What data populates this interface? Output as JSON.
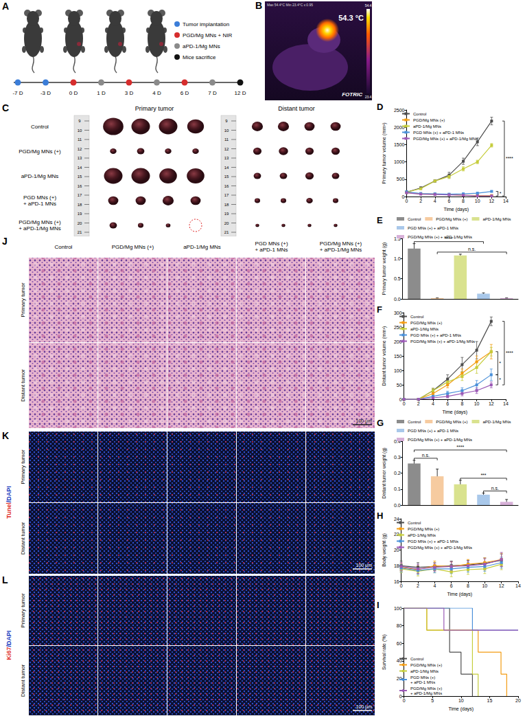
{
  "panels": {
    "A": {
      "letter": "A",
      "legend": [
        {
          "label": "Tumor implantation",
          "color": "#3b7dd8"
        },
        {
          "label": "PGD/Mg MNs + NIR",
          "color": "#d62d2d"
        },
        {
          "label": "aPD-1/Mg MNs",
          "color": "#8a8a8a"
        },
        {
          "label": "Mice sacrifice",
          "color": "#111111"
        }
      ],
      "timeline": [
        {
          "day": "-7 D",
          "event": "Tumor implantation"
        },
        {
          "day": "-3 D",
          "event": "Tumor implantation"
        },
        {
          "day": "0 D",
          "event": "PGD/Mg MNs + NIR"
        },
        {
          "day": "1 D",
          "event": "aPD-1/Mg MNs"
        },
        {
          "day": "3 D",
          "event": "PGD/Mg MNs + NIR"
        },
        {
          "day": "4 D",
          "event": "aPD-1/Mg MNs"
        },
        {
          "day": "6 D",
          "event": "PGD/Mg MNs + NIR"
        },
        {
          "day": "7 D",
          "event": "aPD-1/Mg MNs"
        },
        {
          "day": "12 D",
          "event": "Mice sacrifice"
        }
      ]
    },
    "B": {
      "letter": "B",
      "header": "Max 54.4°C Min 23.4°C ε:0.95",
      "temperature": "54.3 °C",
      "brand": "FOTRIC",
      "colorbar_labels": [
        "54.4",
        "23.4"
      ]
    },
    "C": {
      "letter": "C",
      "headers": [
        "Primary tumor",
        "Distant tumor"
      ],
      "ruler": [
        9,
        10,
        11,
        12,
        13,
        14,
        15,
        16,
        17,
        18,
        19,
        20,
        21
      ],
      "groups": [
        {
          "name": "Control",
          "primary_cm": [
            2.2,
            2.0,
            2.0,
            1.8
          ],
          "distant_cm": [
            1.2,
            1.2,
            1.1,
            1.1
          ]
        },
        {
          "name": "PGD/Mg MNs (+)",
          "primary_cm": [
            0.7,
            0.8,
            0.7,
            0.7
          ],
          "distant_cm": [
            0.9,
            1.0,
            0.9,
            0.9
          ]
        },
        {
          "name": "aPD-1/Mg MNs",
          "primary_cm": [
            2.0,
            2.0,
            1.9,
            1.9
          ],
          "distant_cm": [
            0.8,
            0.8,
            0.9,
            0.8
          ]
        },
        {
          "name": "PGD MNs (+) + aPD-1 MNs",
          "primary_cm": [
            1.1,
            1.1,
            1.2,
            1.1
          ],
          "distant_cm": [
            0.6,
            0.6,
            0.7,
            0.6
          ]
        },
        {
          "name": "PGD/Mg MNs (+) + aPD-1/Mg MNs",
          "primary_cm": [
            0.8,
            0.6,
            0.5,
            null
          ],
          "distant_cm": [
            0.4,
            0.4,
            0.4,
            0.4
          ]
        }
      ]
    },
    "J": {
      "letter": "J",
      "columns": [
        "Control",
        "PGD/Mg MNs (+)",
        "aPD-1/Mg MNs",
        "PGD MNs (+) + aPD-1 MNs",
        "PGD/Mg MNs (+) + aPD-1/Mg MNs"
      ],
      "rows": [
        "Primary tumor",
        "Distant tumor"
      ],
      "scale_bar": "100 μm"
    },
    "K": {
      "letter": "K",
      "stain": "Tunel/DAPI",
      "rows": [
        "Primary tumor",
        "Distant tumor"
      ],
      "scale_bar": "100 μm"
    },
    "L": {
      "letter": "L",
      "stain": "Ki67/DAPI",
      "rows": [
        "Primary tumor",
        "Distant tumor"
      ],
      "scale_bar": "100 μm"
    }
  },
  "chart_data": [
    {
      "letter": "D",
      "type": "line",
      "marker": "square",
      "x_label": "Time (days)",
      "y_label": "Primary tumor volume (mm³)",
      "x": [
        0,
        2,
        4,
        6,
        8,
        10,
        12
      ],
      "xlim": [
        0,
        14
      ],
      "xticks": [
        0,
        2,
        4,
        6,
        8,
        10,
        12,
        14
      ],
      "ylim": [
        0,
        2500
      ],
      "yticks": [
        0,
        500,
        1000,
        1500,
        2000,
        2500
      ],
      "grid": false,
      "legend": "top-left",
      "series": [
        {
          "name": "Control",
          "color": "#4d4d4d",
          "values": [
            130,
            250,
            450,
            620,
            1020,
            1580,
            2180
          ],
          "errors": [
            20,
            30,
            30,
            80,
            90,
            110,
            110
          ]
        },
        {
          "name": "PGD/Mg MNs (+)",
          "color": "#f39c12",
          "values": [
            120,
            80,
            70,
            60,
            40,
            30,
            30
          ],
          "errors": [
            20,
            15,
            15,
            10,
            10,
            10,
            10
          ]
        },
        {
          "name": "aPD-1/Mg MNs",
          "color": "#c5cc3a",
          "values": [
            130,
            230,
            450,
            580,
            800,
            1000,
            1480
          ],
          "errors": [
            20,
            30,
            30,
            60,
            60,
            50,
            50
          ]
        },
        {
          "name": "PGD MNs (+) + aPD-1 MNs",
          "color": "#4a90d9",
          "values": [
            140,
            90,
            80,
            70,
            80,
            100,
            150
          ],
          "errors": [
            20,
            15,
            15,
            10,
            15,
            15,
            20
          ]
        },
        {
          "name": "PGD/Mg MNs (+) + aPD-1/Mg MNs",
          "color": "#9b59b6",
          "values": [
            110,
            70,
            60,
            50,
            40,
            20,
            20
          ],
          "errors": [
            20,
            15,
            10,
            10,
            10,
            10,
            10
          ]
        }
      ],
      "annotations": [
        {
          "text": "*",
          "between": [
            "PGD MNs (+) + aPD-1 MNs",
            "PGD/Mg MNs (+) + aPD-1/Mg MNs"
          ]
        },
        {
          "text": "****",
          "between": [
            "Control",
            "PGD/Mg MNs (+) + aPD-1/Mg MNs"
          ]
        }
      ]
    },
    {
      "letter": "E",
      "type": "bar",
      "y_label": "Primary tumor weight (g)",
      "categories": [
        "Control",
        "PGD/Mg MNs (+)",
        "aPD-1/Mg MNs",
        "PGD MNs (+) + aPD-1 MNs",
        "PGD/Mg MNs (+) + aPD-1/Mg MNs"
      ],
      "values": [
        1.25,
        0.02,
        1.08,
        0.13,
        0.02
      ],
      "errors": [
        0.12,
        0.005,
        0.03,
        0.02,
        0.005
      ],
      "colors": [
        "#8c8c8c",
        "#f6cba0",
        "#d9e28e",
        "#a9c8ea",
        "#d7b0d8"
      ],
      "ylim": [
        0,
        1.5
      ],
      "yticks": [
        {
          "value": 0,
          "label": "0.0"
        },
        0.5,
        {
          "value": 1,
          "label": "1.0"
        },
        1.5
      ],
      "tick_labels": "y",
      "grid": false,
      "legend": "top",
      "annotations": [
        {
          "text": "n.s.",
          "between": [
            "PGD/Mg MNs (+)",
            "PGD/Mg MNs (+) + aPD-1/Mg MNs"
          ]
        },
        {
          "text": "****",
          "between": [
            "Control",
            "PGD MNs (+) + aPD-1 MNs"
          ]
        }
      ]
    },
    {
      "letter": "F",
      "type": "line",
      "marker": "square",
      "x_label": "Time (days)",
      "y_label": "Distant tumor volume (mm³)",
      "x": [
        0,
        2,
        4,
        6,
        8,
        10,
        12
      ],
      "xlim": [
        0,
        14
      ],
      "xticks": [
        0,
        2,
        4,
        6,
        8,
        10,
        12,
        14
      ],
      "ylim": [
        0,
        300
      ],
      "yticks": [
        0,
        50,
        100,
        150,
        200,
        250,
        300
      ],
      "grid": false,
      "legend": "top-left",
      "series": [
        {
          "name": "Control",
          "color": "#4d4d4d",
          "values": [
            0,
            0,
            30,
            70,
            120,
            170,
            270
          ],
          "errors": [
            0,
            0,
            8,
            15,
            25,
            30,
            15
          ]
        },
        {
          "name": "PGD/Mg MNs (+)",
          "color": "#f39c12",
          "values": [
            0,
            0,
            20,
            50,
            90,
            130,
            165
          ],
          "errors": [
            0,
            0,
            6,
            10,
            15,
            20,
            25
          ]
        },
        {
          "name": "aPD-1/Mg MNs",
          "color": "#c5cc3a",
          "values": [
            0,
            0,
            30,
            60,
            80,
            110,
            165
          ],
          "errors": [
            0,
            0,
            8,
            10,
            15,
            20,
            15
          ]
        },
        {
          "name": "PGD MNs (+) + aPD-1 MNs",
          "color": "#4a90d9",
          "values": [
            0,
            0,
            10,
            20,
            30,
            50,
            85
          ],
          "errors": [
            0,
            0,
            5,
            8,
            10,
            15,
            20
          ]
        },
        {
          "name": "PGD/Mg MNs (+) + aPD-1/Mg MNs",
          "color": "#9b59b6",
          "values": [
            0,
            0,
            5,
            10,
            20,
            30,
            50
          ],
          "errors": [
            0,
            0,
            3,
            5,
            8,
            10,
            10
          ]
        }
      ],
      "annotations": [
        {
          "text": "*",
          "between": [
            "PGD/Mg MNs (+)",
            "PGD MNs (+) + aPD-1 MNs"
          ]
        },
        {
          "text": "*",
          "between": [
            "PGD MNs (+) + aPD-1 MNs",
            "PGD/Mg MNs (+) + aPD-1/Mg MNs"
          ]
        },
        {
          "text": "****",
          "between": [
            "Control",
            "PGD/Mg MNs (+) + aPD-1/Mg MNs"
          ]
        }
      ]
    },
    {
      "letter": "G",
      "type": "bar",
      "y_label": "Distant tumor weight (g)",
      "categories": [
        "Control",
        "PGD/Mg MNs (+)",
        "aPD-1/Mg MNs",
        "PGD MNs (+) + aPD-1 MNs",
        "PGD/Mg MNs (+) + aPD-1/Mg MNs"
      ],
      "values": [
        0.26,
        0.18,
        0.13,
        0.065,
        0.02
      ],
      "errors": [
        0.02,
        0.045,
        0.025,
        0.01,
        0.015
      ],
      "colors": [
        "#8c8c8c",
        "#f6cba0",
        "#d9e28e",
        "#a9c8ea",
        "#d7b0d8"
      ],
      "ylim": [
        0,
        0.4
      ],
      "yticks": [
        {
          "value": 0,
          "label": "0.0"
        },
        0.1,
        0.2,
        0.3,
        0.4
      ],
      "tick_labels": "y",
      "grid": false,
      "legend": "top",
      "annotations": [
        {
          "text": "n.s.",
          "between": [
            "Control",
            "PGD/Mg MNs (+)"
          ]
        },
        {
          "text": "n.s.",
          "between": [
            "PGD MNs (+) + aPD-1 MNs",
            "PGD/Mg MNs (+) + aPD-1/Mg MNs"
          ]
        },
        {
          "text": "***",
          "between": [
            "aPD-1/Mg MNs",
            "PGD/Mg MNs (+) + aPD-1/Mg MNs"
          ]
        },
        {
          "text": "****",
          "between": [
            "Control",
            "PGD/Mg MNs (+) + aPD-1/Mg MNs"
          ]
        }
      ]
    },
    {
      "letter": "H",
      "type": "line",
      "marker": "square",
      "x_label": "Time (days)",
      "y_label": "Body weight (g)",
      "x": [
        0,
        2,
        4,
        6,
        8,
        10,
        12
      ],
      "xlim": [
        0,
        14
      ],
      "xticks": [
        0,
        2,
        4,
        6,
        8,
        10,
        12,
        14
      ],
      "ylim": [
        16,
        24
      ],
      "yticks": [
        16,
        18,
        20,
        22,
        24
      ],
      "grid": false,
      "legend": "top-left",
      "series": [
        {
          "name": "Control",
          "color": "#4d4d4d",
          "values": [
            18.0,
            17.8,
            17.9,
            18.0,
            18.1,
            18.3,
            18.7
          ],
          "errors": [
            0.6,
            0.6,
            0.5,
            0.6,
            0.6,
            0.7,
            0.8
          ]
        },
        {
          "name": "PGD/Mg MNs (+)",
          "color": "#f39c12",
          "values": [
            17.8,
            17.5,
            18.0,
            17.9,
            18.2,
            18.4,
            18.8
          ],
          "errors": [
            0.5,
            0.5,
            0.6,
            0.6,
            0.6,
            0.6,
            0.8
          ]
        },
        {
          "name": "aPD-1/Mg MNs",
          "color": "#c5cc3a",
          "values": [
            17.6,
            17.3,
            17.6,
            17.2,
            17.5,
            17.6,
            18.2
          ],
          "errors": [
            0.5,
            0.6,
            0.5,
            0.6,
            0.6,
            0.6,
            0.7
          ]
        },
        {
          "name": "PGD MNs (+) + aPD-1 MNs",
          "color": "#4a90d9",
          "values": [
            17.7,
            17.4,
            17.6,
            17.6,
            17.8,
            17.9,
            18.4
          ],
          "errors": [
            0.5,
            0.5,
            0.5,
            0.6,
            0.6,
            0.6,
            0.7
          ]
        },
        {
          "name": "PGD/Mg MNs (+) + aPD-1/Mg MNs",
          "color": "#9b59b6",
          "values": [
            17.9,
            17.6,
            17.8,
            17.9,
            18.0,
            18.2,
            18.8
          ],
          "errors": [
            0.5,
            0.6,
            0.5,
            0.6,
            0.6,
            0.7,
            0.9
          ]
        }
      ]
    },
    {
      "letter": "I",
      "type": "line",
      "line_style": "step",
      "marker": "none",
      "x_label": "Time (days)",
      "y_label": "Survival rate (%)",
      "xlim": [
        0,
        20
      ],
      "xticks": [
        0,
        5,
        10,
        15,
        20
      ],
      "ylim": [
        0,
        100
      ],
      "yticks": [
        0,
        20,
        40,
        60,
        80,
        100
      ],
      "grid": false,
      "legend": "bottom-left",
      "series": [
        {
          "name": "Control",
          "color": "#4d4d4d",
          "x": [
            0,
            8,
            10,
            12
          ],
          "values": [
            100,
            50,
            25,
            0
          ]
        },
        {
          "name": "PGD/Mg MNs (+)",
          "color": "#f39c12",
          "x": [
            0,
            4,
            13,
            17,
            18
          ],
          "values": [
            100,
            75,
            50,
            25,
            0
          ]
        },
        {
          "name": "aPD-1/Mg MNs",
          "color": "#c5cc3a",
          "x": [
            0,
            4,
            12,
            13
          ],
          "values": [
            100,
            75,
            25,
            0
          ]
        },
        {
          "name": "PGD MNs (+) + aPD-1 MNs",
          "color": "#4a90d9",
          "x": [
            0,
            12,
            20
          ],
          "values": [
            100,
            75,
            75
          ]
        },
        {
          "name": "PGD/Mg MNs (+) + aPD-1/Mg MNs",
          "color": "#9b59b6",
          "x": [
            0,
            7,
            20
          ],
          "values": [
            100,
            75,
            75
          ]
        }
      ]
    }
  ]
}
